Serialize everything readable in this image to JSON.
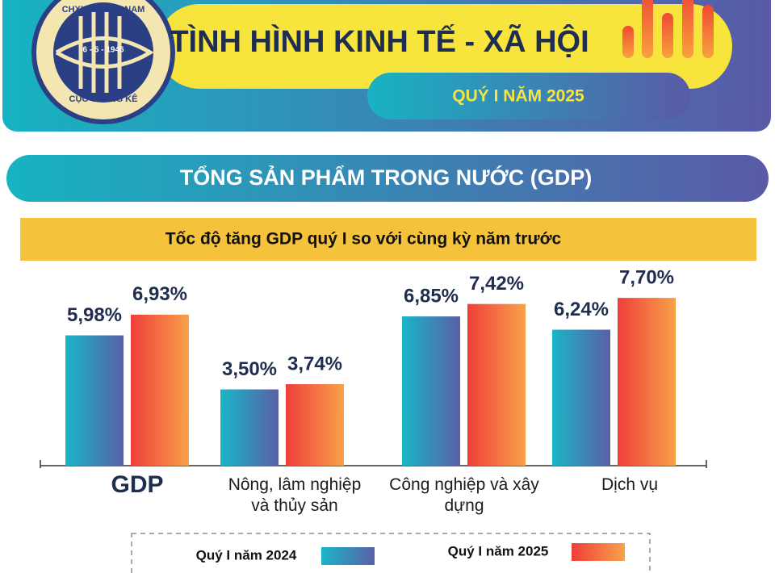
{
  "header": {
    "title": "TÌNH HÌNH KINH TẾ - XÃ HỘI",
    "subtitle": "QUÝ I NĂM 2025",
    "logo_top": "CHXHCN VIỆT NAM",
    "logo_date": "6 - 5 - 1946",
    "logo_bottom": "CỤC THỐNG KÊ"
  },
  "section": "TỔNG SẢN PHẨM TRONG NƯỚC (GDP)",
  "chart_data": {
    "type": "bar",
    "title": "Tốc độ tăng GDP quý I so với cùng kỳ năm trước",
    "categories": [
      "GDP",
      "Nông, lâm nghiệp và thủy sản",
      "Công nghiệp và xây dựng",
      "Dịch vụ"
    ],
    "series": [
      {
        "name": "Quý I năm 2024",
        "color": "#19b6c6",
        "values": [
          5.98,
          3.5,
          6.85,
          6.24
        ],
        "value_labels": [
          "5,98%",
          "3,50%",
          "6,85%",
          "6,24%"
        ]
      },
      {
        "name": "Quý I năm 2025",
        "color": "#ef3f3a",
        "values": [
          6.93,
          3.74,
          7.42,
          7.7
        ],
        "value_labels": [
          "6,93%",
          "3,74%",
          "7,42%",
          "7,70%"
        ]
      }
    ]
  }
}
